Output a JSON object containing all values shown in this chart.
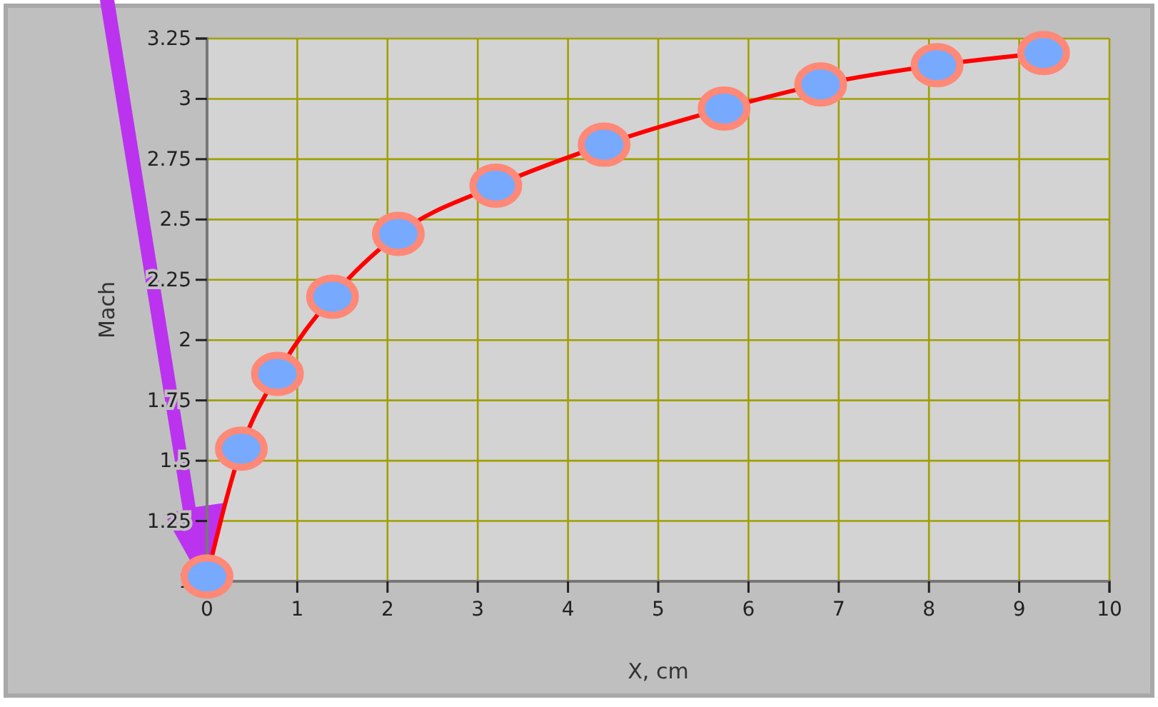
{
  "chart_data": {
    "type": "line",
    "xlabel": "X, cm",
    "ylabel": "Mach",
    "x": [
      0,
      0.38,
      0.78,
      1.39,
      2.12,
      3.2,
      4.4,
      5.73,
      6.8,
      8.09,
      9.27
    ],
    "series": [
      {
        "color": "#ff0000",
        "values": [
          1.02,
          1.55,
          1.86,
          2.18,
          2.44,
          2.64,
          2.81,
          2.96,
          3.06,
          3.14,
          3.19
        ]
      }
    ],
    "xlim": [
      0,
      10
    ],
    "xticks": [
      0,
      1,
      2,
      3,
      4,
      5,
      6,
      7,
      8,
      9,
      10
    ],
    "ylim": [
      1,
      3.25
    ],
    "yticks": [
      1,
      1.25,
      1.5,
      1.75,
      2,
      2.25,
      2.5,
      2.75,
      3,
      3.25
    ],
    "grid": true,
    "marker": "circle",
    "line_style": "solid"
  }
}
